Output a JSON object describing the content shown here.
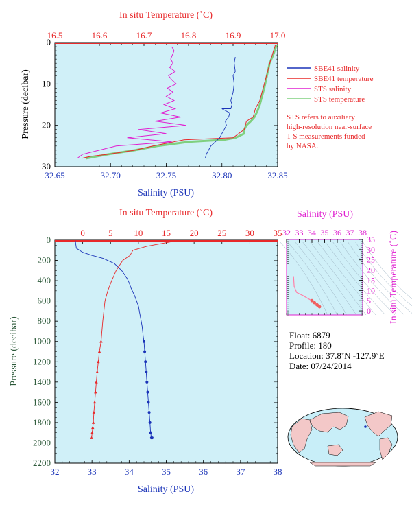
{
  "colors": {
    "red": "#e8282a",
    "blue": "#1a33b8",
    "magenta": "#e020d0",
    "green": "#7fd07f",
    "pink": "#ff80a8",
    "plot_bg": "#d0f0f8",
    "axis_dark_green": "#2d5a3a"
  },
  "chart_data": [
    {
      "type": "line",
      "panel": "top-left",
      "top_axis": {
        "label": "In situ Temperature (˚C)",
        "range": [
          16.5,
          17.0
        ],
        "ticks": [
          "16.5",
          "16.6",
          "16.7",
          "16.8",
          "16.9",
          "17.0"
        ]
      },
      "bottom_axis": {
        "label": "Salinity (PSU)",
        "range": [
          32.65,
          32.85
        ],
        "ticks": [
          "32.65",
          "32.70",
          "32.75",
          "32.80",
          "32.85"
        ]
      },
      "left_axis": {
        "label": "Pressure (decibar)",
        "range": [
          0,
          30
        ],
        "inverted": true,
        "ticks": [
          "0",
          "10",
          "20",
          "30"
        ]
      },
      "legend": {
        "placement": "right",
        "entries": [
          {
            "label": "SBE41 salinity",
            "color": "#1a33b8"
          },
          {
            "label": "SBE41 temperature",
            "color": "#e8282a"
          },
          {
            "label": "STS salinity",
            "color": "#e020d0"
          },
          {
            "label": "STS temperature",
            "color": "#7fd07f"
          }
        ]
      },
      "note_lines": [
        "STS refers to auxiliary",
        "high-resolution near-surface",
        "T-S measurements funded",
        "by NASA."
      ],
      "series": [
        {
          "name": "SBE41 salinity",
          "axis": "salinity",
          "x": [
            32.812,
            32.811,
            32.812,
            32.81,
            32.811,
            32.81,
            32.809,
            32.808,
            32.809,
            32.808,
            32.8,
            32.807,
            32.806,
            32.803,
            32.804,
            32.802,
            32.8,
            32.798,
            32.794,
            32.79,
            32.788,
            32.786,
            32.785
          ],
          "y": [
            3.5,
            5,
            7,
            8,
            10,
            12,
            13,
            14,
            15,
            16,
            16,
            17,
            18,
            19,
            20,
            21,
            22,
            23,
            24,
            25,
            26,
            27,
            28
          ]
        },
        {
          "name": "SBE41 temperature",
          "axis": "temperature",
          "x": [
            16.995,
            16.985,
            16.98,
            16.975,
            16.97,
            16.965,
            16.96,
            16.95,
            16.945,
            16.93,
            16.925,
            16.9,
            16.79,
            16.72,
            16.68,
            16.62,
            16.58,
            16.56
          ],
          "y": [
            0.5,
            4,
            6,
            8,
            10,
            12,
            14,
            16,
            18,
            19,
            21,
            23,
            23.5,
            25,
            26,
            27,
            27.5,
            28
          ]
        },
        {
          "name": "STS salinity",
          "axis": "salinity",
          "x": [
            32.755,
            32.757,
            32.754,
            32.756,
            32.753,
            32.758,
            32.752,
            32.755,
            32.759,
            32.751,
            32.756,
            32.75,
            32.757,
            32.748,
            32.758,
            32.745,
            32.763,
            32.74,
            32.768,
            32.725,
            32.75,
            32.715,
            32.755,
            32.705,
            32.69,
            32.675,
            32.67
          ],
          "y": [
            1,
            2,
            4,
            5,
            6,
            7,
            8,
            9,
            10,
            11,
            12,
            13,
            14,
            15,
            16,
            17,
            18,
            19,
            20,
            21,
            22,
            23,
            24,
            25,
            26,
            27,
            28
          ]
        },
        {
          "name": "STS temperature",
          "axis": "temperature",
          "x": [
            16.998,
            16.99,
            16.982,
            16.978,
            16.974,
            16.97,
            16.965,
            16.96,
            16.955,
            16.948,
            16.94,
            16.93,
            16.925,
            16.925,
            16.905,
            16.88,
            16.8,
            16.73,
            16.68,
            16.62,
            16.57
          ],
          "y": [
            0.5,
            3,
            5,
            7,
            9,
            11,
            13,
            15,
            16.5,
            18,
            19,
            20,
            21,
            22,
            23,
            23.5,
            24,
            25,
            26,
            27,
            28
          ]
        }
      ]
    },
    {
      "type": "line",
      "panel": "bottom-left",
      "top_axis": {
        "label": "In situ Temperature (˚C)",
        "range": [
          -5,
          35
        ],
        "ticks": [
          "0",
          "5",
          "10",
          "15",
          "20",
          "25",
          "30",
          "35"
        ]
      },
      "bottom_axis": {
        "label": "Salinity (PSU)",
        "range": [
          32,
          38
        ],
        "ticks": [
          "32",
          "33",
          "34",
          "35",
          "36",
          "37",
          "38"
        ]
      },
      "left_axis": {
        "label": "Pressure (decibar)",
        "range": [
          0,
          2200
        ],
        "inverted": true,
        "ticks": [
          "0",
          "200",
          "400",
          "600",
          "800",
          "1000",
          "1200",
          "1400",
          "1600",
          "1800",
          "2000",
          "2200"
        ]
      },
      "series": [
        {
          "name": "Salinity",
          "axis": "salinity",
          "marker": "circle",
          "x": [
            32.55,
            32.58,
            32.75,
            33.0,
            33.3,
            33.6,
            33.8,
            33.95,
            34.0,
            34.05,
            34.15,
            34.25,
            34.3,
            34.35,
            34.38,
            34.4,
            34.42,
            34.44,
            34.46,
            34.48,
            34.5,
            34.52,
            34.54,
            34.56,
            34.58,
            34.6,
            34.62
          ],
          "y": [
            5,
            80,
            120,
            150,
            180,
            230,
            300,
            380,
            420,
            470,
            550,
            650,
            750,
            850,
            950,
            1000,
            1100,
            1200,
            1300,
            1400,
            1500,
            1600,
            1700,
            1800,
            1900,
            1950,
            1950
          ]
        },
        {
          "name": "Temperature",
          "axis": "temperature",
          "marker": "triangle",
          "x": [
            17.0,
            11.5,
            9.0,
            8.5,
            7.2,
            6.0,
            5.2,
            4.5,
            4.0,
            3.6,
            3.3,
            3.0,
            2.8,
            2.6,
            2.45,
            2.3,
            2.15,
            2.0,
            1.9,
            1.8,
            1.7,
            1.6
          ],
          "y": [
            5,
            60,
            100,
            150,
            200,
            300,
            400,
            500,
            600,
            800,
            1000,
            1100,
            1200,
            1300,
            1400,
            1500,
            1600,
            1700,
            1800,
            1850,
            1900,
            1950
          ]
        }
      ]
    },
    {
      "type": "scatter",
      "panel": "ts-diagram",
      "top_axis": {
        "label": "Salinity (PSU)",
        "range": [
          32,
          38
        ],
        "ticks": [
          "32",
          "33",
          "34",
          "35",
          "36",
          "37",
          "38"
        ]
      },
      "right_axis": {
        "label": "In situ Temperature (˚C)",
        "range": [
          -2,
          35
        ],
        "ticks": [
          "0",
          "5",
          "10",
          "15",
          "20",
          "25",
          "30",
          "35"
        ]
      },
      "series": [
        {
          "name": "T-S",
          "x": [
            32.55,
            32.6,
            32.8,
            33.3,
            33.7,
            34.0,
            34.2,
            34.4,
            34.5,
            34.6
          ],
          "y": [
            17,
            12,
            9,
            7.5,
            6,
            5,
            4,
            3,
            2.5,
            2
          ]
        }
      ]
    }
  ],
  "info": {
    "float": "Float:  6879",
    "profile": "Profile:  180",
    "location": "Location:  37.8˚N  -127.9˚E",
    "date": "Date:  07/24/2014"
  }
}
